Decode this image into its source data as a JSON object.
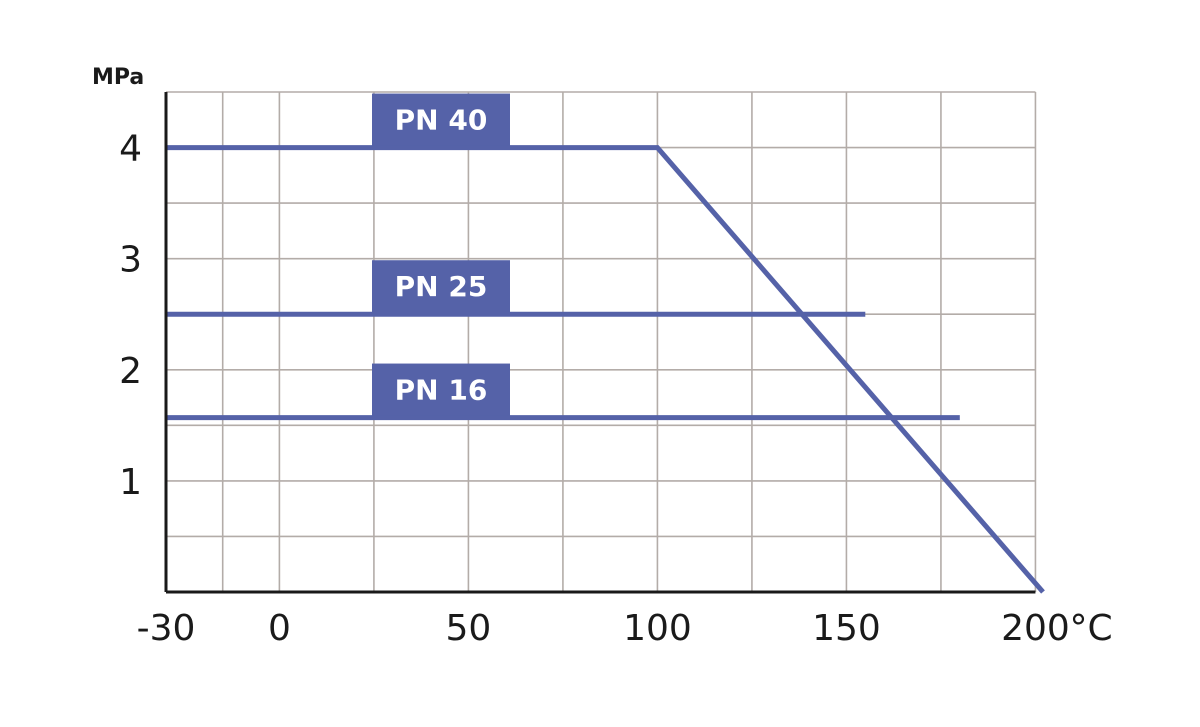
{
  "chart_data": {
    "type": "line",
    "title": "",
    "ylabel": "MPa",
    "xlabel": "",
    "x_unit": "°C",
    "xlim": [
      -30,
      202
    ],
    "ylim": [
      0,
      4.5
    ],
    "x_ticks": [
      -30,
      0,
      50,
      100,
      150,
      200
    ],
    "x_tick_labels": [
      "-30",
      "0",
      "50",
      "100",
      "150",
      "200"
    ],
    "y_ticks": [
      1,
      2,
      3,
      4
    ],
    "y_tick_labels": [
      "1",
      "2",
      "3",
      "4"
    ],
    "grid": true,
    "colors": {
      "series": "#5562a8",
      "grid": "#b3aca8",
      "axis": "#1a1a1a"
    },
    "series": [
      {
        "name": "PN 40",
        "points": [
          [
            -30,
            4.0
          ],
          [
            100,
            4.0
          ],
          [
            202,
            0
          ]
        ]
      },
      {
        "name": "PN 25",
        "points": [
          [
            -30,
            2.5
          ],
          [
            155,
            2.5
          ]
        ]
      },
      {
        "name": "PN 16",
        "points": [
          [
            -30,
            1.57
          ],
          [
            180,
            1.57
          ]
        ]
      }
    ]
  }
}
